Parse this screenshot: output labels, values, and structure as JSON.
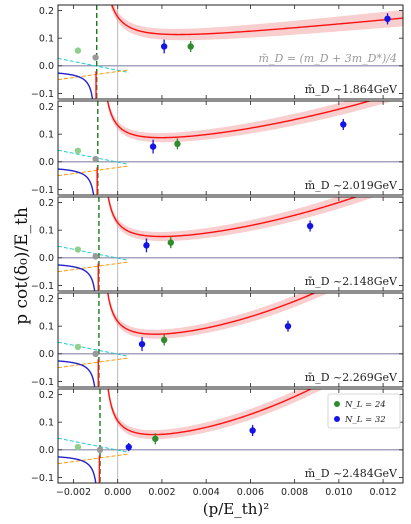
{
  "chart_data": {
    "type": "line",
    "ylabel": "p cot(δ₀)/E_th",
    "xlabel": "(p/E_th)²",
    "xlim": [
      -0.0027,
      0.0129
    ],
    "ylim": [
      -0.12,
      0.22
    ],
    "xticks": [
      -0.002,
      0.0,
      0.002,
      0.004,
      0.006,
      0.008,
      0.01,
      0.012
    ],
    "xtick_labels": [
      "−0.002",
      "0.000",
      "0.002",
      "0.004",
      "0.006",
      "0.008",
      "0.010",
      "0.012"
    ],
    "yticks": [
      -0.1,
      0.0,
      0.1,
      0.2
    ],
    "ytick_labels": [
      "−0.1",
      "0.0",
      "0.1",
      "0.2"
    ],
    "note": "m̄_D = (m_D + 3m_D*)/4",
    "legend": {
      "position": "right",
      "entries": [
        {
          "label": "N_L = 24",
          "color": "#2e8b2e"
        },
        {
          "label": "N_L = 32",
          "color": "#1414e6"
        }
      ]
    },
    "colors": {
      "fit": "#ff1010",
      "band": "#f7c6c6",
      "green_dash": "#1a7a1a",
      "cyan_dash": "#22cccc",
      "orange_dash": "#ff9900",
      "blue_curve": "#2222cc",
      "zero_line": "#8888aa",
      "grey": "#999999",
      "faint_green": "#8fd08f"
    },
    "panels": [
      {
        "label": "m̄_D ~1.864GeV",
        "pole": -0.00095,
        "fit": {
          "c0": 0.0615,
          "c1": 8.0,
          "c2": 0,
          "A": 0.00011,
          "band": 0.018
        },
        "green_points": [
          {
            "x": 0.0033,
            "y": 0.07,
            "err": 0.02
          }
        ],
        "blue_points": [
          {
            "x": 0.0021,
            "y": 0.07,
            "err": 0.025
          },
          {
            "x": 0.0122,
            "y": 0.17,
            "err": 0.02
          }
        ],
        "faint_points": [
          {
            "x": -0.0018,
            "y": 0.055,
            "err": 0.01
          }
        ],
        "grey_points": [
          {
            "x": -0.001,
            "y": 0.03,
            "err": 0.01
          }
        ]
      },
      {
        "label": "m̄_D ~2.019GeV",
        "pole": -0.0009,
        "fit": {
          "c0": 0.043,
          "c1": 7.0,
          "c2": 700,
          "A": 8e-05,
          "band": 0.015
        },
        "green_points": [
          {
            "x": 0.0027,
            "y": 0.065,
            "err": 0.02
          }
        ],
        "blue_points": [
          {
            "x": 0.0016,
            "y": 0.055,
            "err": 0.025
          },
          {
            "x": 0.0102,
            "y": 0.135,
            "err": 0.02
          }
        ],
        "faint_points": [
          {
            "x": -0.0018,
            "y": 0.04,
            "err": 0.01
          }
        ],
        "grey_points": [
          {
            "x": -0.001,
            "y": 0.01,
            "err": 0.01
          }
        ]
      },
      {
        "label": "m̄_D ~2.148GeV",
        "pole": -0.00085,
        "fit": {
          "c0": 0.033,
          "c1": 6.0,
          "c2": 1000,
          "A": 8e-05,
          "band": 0.015
        },
        "green_points": [
          {
            "x": 0.0024,
            "y": 0.055,
            "err": 0.02
          }
        ],
        "blue_points": [
          {
            "x": 0.0013,
            "y": 0.045,
            "err": 0.025
          },
          {
            "x": 0.0087,
            "y": 0.115,
            "err": 0.02
          }
        ],
        "faint_points": [
          {
            "x": -0.0018,
            "y": 0.03,
            "err": 0.01
          }
        ],
        "grey_points": [
          {
            "x": -0.001,
            "y": 0.005,
            "err": 0.01
          }
        ]
      },
      {
        "label": "m̄_D ~2.269GeV",
        "pole": -0.00085,
        "fit": {
          "c0": 0.023,
          "c1": 7.0,
          "c2": 1600,
          "A": 8e-05,
          "band": 0.015
        },
        "green_points": [
          {
            "x": 0.0021,
            "y": 0.05,
            "err": 0.02
          }
        ],
        "blue_points": [
          {
            "x": 0.0011,
            "y": 0.035,
            "err": 0.025
          },
          {
            "x": 0.0077,
            "y": 0.1,
            "err": 0.02
          }
        ],
        "faint_points": [
          {
            "x": -0.0018,
            "y": 0.025,
            "err": 0.01
          }
        ],
        "grey_points": [
          {
            "x": -0.001,
            "y": 0.0,
            "err": 0.01
          }
        ]
      },
      {
        "label": "m̄_D ~2.484GeV",
        "pole": -0.0008,
        "fit": {
          "c0": 0.005,
          "c1": 7.5,
          "c2": 1850,
          "A": 8e-05,
          "band": 0.015
        },
        "green_points": [
          {
            "x": 0.0017,
            "y": 0.04,
            "err": 0.02
          }
        ],
        "blue_points": [
          {
            "x": 0.0005,
            "y": 0.01,
            "err": 0.015
          },
          {
            "x": 0.0061,
            "y": 0.07,
            "err": 0.02
          }
        ],
        "faint_points": [
          {
            "x": -0.0018,
            "y": 0.01,
            "err": 0.01
          }
        ],
        "grey_points": [
          {
            "x": -0.0008,
            "y": 0.0,
            "err": 0.01
          }
        ]
      }
    ]
  }
}
